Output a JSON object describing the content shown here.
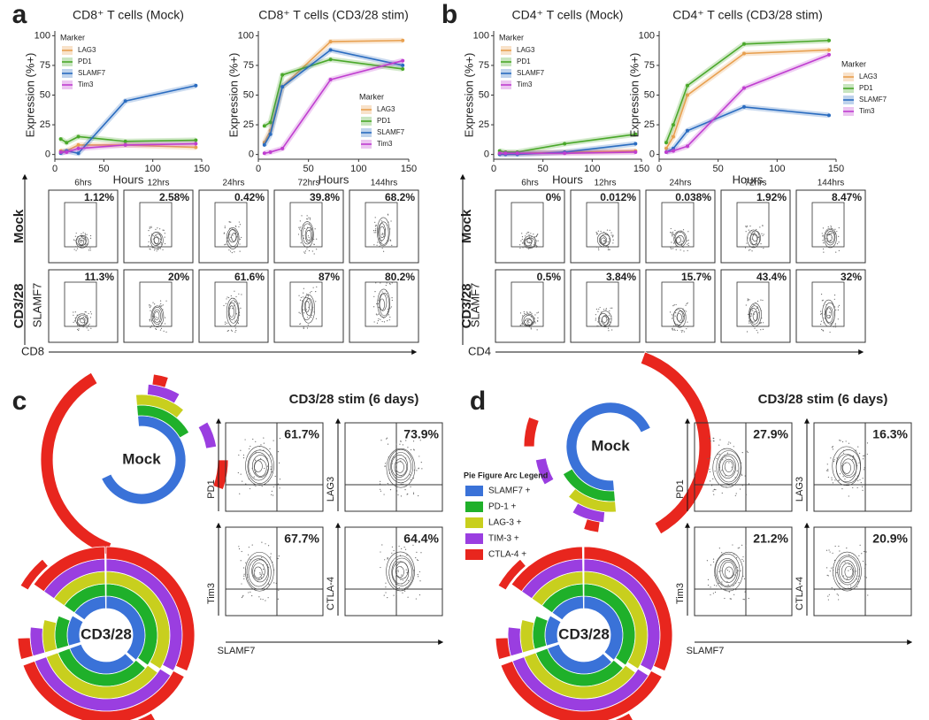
{
  "panel_labels": [
    "a",
    "b",
    "c",
    "d"
  ],
  "chart_data": [
    {
      "type": "line",
      "title": "CD8⁺ T cells (Mock)",
      "x_label": "Hours",
      "y_label": "Expression (%+)",
      "legend_title": "Marker",
      "legend_position": "upper left",
      "x": [
        6,
        12,
        24,
        72,
        144
      ],
      "xlim": [
        0,
        150
      ],
      "xticks": [
        0,
        50,
        100,
        150
      ],
      "ylim": [
        -4,
        104
      ],
      "yticks": [
        0,
        25,
        50,
        75,
        100
      ],
      "series": [
        {
          "name": "LAG3",
          "color": "#e8a050",
          "values": [
            3,
            3,
            8,
            8,
            6
          ]
        },
        {
          "name": "PD1",
          "color": "#4aa82a",
          "values": [
            13,
            10,
            15,
            11,
            12
          ]
        },
        {
          "name": "SLAMF7",
          "color": "#2a6cc0",
          "values": [
            1,
            3,
            1,
            45,
            58
          ]
        },
        {
          "name": "Tim3",
          "color": "#c03ed0",
          "values": [
            2,
            2,
            5,
            8,
            9
          ]
        }
      ]
    },
    {
      "type": "line",
      "title": "CD8⁺ T cells (CD3/28 stim)",
      "x_label": "Hours",
      "y_label": "Expression (%+)",
      "legend_title": "Marker",
      "legend_position": "lower right",
      "x": [
        6,
        12,
        24,
        72,
        144
      ],
      "xlim": [
        0,
        150
      ],
      "xticks": [
        0,
        50,
        100,
        150
      ],
      "ylim": [
        -4,
        104
      ],
      "yticks": [
        0,
        25,
        50,
        75,
        100
      ],
      "series": [
        {
          "name": "LAG3",
          "color": "#e8a050",
          "values": [
            10,
            20,
            57,
            95,
            96
          ]
        },
        {
          "name": "PD1",
          "color": "#4aa82a",
          "values": [
            24,
            27,
            67,
            80,
            72
          ]
        },
        {
          "name": "SLAMF7",
          "color": "#2a6cc0",
          "values": [
            8,
            17,
            57,
            88,
            75
          ]
        },
        {
          "name": "Tim3",
          "color": "#c03ed0",
          "values": [
            1,
            2,
            5,
            63,
            79
          ]
        }
      ]
    },
    {
      "type": "line",
      "title": "CD4⁺ T cells (Mock)",
      "x_label": "Hours",
      "y_label": "Expression (%+)",
      "legend_title": "Marker",
      "legend_position": "upper left",
      "x": [
        6,
        12,
        24,
        72,
        144
      ],
      "xlim": [
        0,
        150
      ],
      "xticks": [
        0,
        50,
        100,
        150
      ],
      "ylim": [
        -4,
        104
      ],
      "yticks": [
        0,
        25,
        50,
        75,
        100
      ],
      "series": [
        {
          "name": "LAG3",
          "color": "#e8a050",
          "values": [
            1,
            1,
            1,
            2,
            3
          ]
        },
        {
          "name": "PD1",
          "color": "#4aa82a",
          "values": [
            3,
            2,
            2,
            9,
            17
          ]
        },
        {
          "name": "SLAMF7",
          "color": "#2a6cc0",
          "values": [
            0,
            0,
            0,
            2,
            9
          ]
        },
        {
          "name": "Tim3",
          "color": "#c03ed0",
          "values": [
            1,
            1,
            1,
            1,
            2
          ]
        }
      ]
    },
    {
      "type": "line",
      "title": "CD4⁺ T cells (CD3/28 stim)",
      "x_label": "Hours",
      "y_label": "Expression (%+)",
      "legend_title": "Marker",
      "legend_position": "right",
      "x": [
        6,
        12,
        24,
        72,
        144
      ],
      "xlim": [
        0,
        150
      ],
      "xticks": [
        0,
        50,
        100,
        150
      ],
      "ylim": [
        -4,
        104
      ],
      "yticks": [
        0,
        25,
        50,
        75,
        100
      ],
      "series": [
        {
          "name": "LAG3",
          "color": "#e8a050",
          "values": [
            5,
            15,
            50,
            85,
            88
          ]
        },
        {
          "name": "PD1",
          "color": "#4aa82a",
          "values": [
            10,
            25,
            58,
            93,
            96
          ]
        },
        {
          "name": "SLAMF7",
          "color": "#2a6cc0",
          "values": [
            2,
            5,
            20,
            40,
            33
          ]
        },
        {
          "name": "Tim3",
          "color": "#c03ed0",
          "values": [
            2,
            3,
            7,
            56,
            84
          ]
        }
      ]
    }
  ],
  "flow_grids": [
    {
      "times": [
        "6hrs",
        "12hrs",
        "24hrs",
        "72hrs",
        "144hrs"
      ],
      "y_label": "SLAMF7",
      "x_label": "CD8",
      "rows": [
        {
          "label": "Mock",
          "values": [
            "1.12%",
            "2.58%",
            "0.42%",
            "39.8%",
            "68.2%"
          ]
        },
        {
          "label": "CD3/28",
          "values": [
            "11.3%",
            "20%",
            "61.6%",
            "87%",
            "80.2%"
          ]
        }
      ]
    },
    {
      "times": [
        "6hrs",
        "12hrs",
        "24hrs",
        "72hrs",
        "144hrs"
      ],
      "y_label": "SLAMF7",
      "x_label": "CD4",
      "rows": [
        {
          "label": "Mock",
          "values": [
            "0%",
            "0.012%",
            "0.038%",
            "1.92%",
            "8.47%"
          ]
        },
        {
          "label": "CD3/28",
          "values": [
            "0.5%",
            "3.84%",
            "15.7%",
            "43.4%",
            "32%"
          ]
        }
      ]
    }
  ],
  "stim_panels": [
    {
      "title": "CD3/28 stim (6 days)",
      "sunburst_labels": [
        "Mock",
        "CD3/28"
      ],
      "x_label": "SLAMF7",
      "plots": [
        {
          "y_label": "PD1",
          "value": "61.7%"
        },
        {
          "y_label": "LAG3",
          "value": "73.9%"
        },
        {
          "y_label": "Tim3",
          "value": "67.7%"
        },
        {
          "y_label": "CTLA-4",
          "value": "64.4%"
        }
      ]
    },
    {
      "title": "CD3/28 stim (6 days)",
      "sunburst_labels": [
        "Mock",
        "CD3/28"
      ],
      "x_label": "SLAMF7",
      "plots": [
        {
          "y_label": "PD1",
          "value": "27.9%"
        },
        {
          "y_label": "LAG3",
          "value": "16.3%"
        },
        {
          "y_label": "Tim3",
          "value": "21.2%"
        },
        {
          "y_label": "CTLA-4",
          "value": "20.9%"
        }
      ]
    }
  ],
  "arc_legend": {
    "title": "Pie Figure Arc Legend",
    "items": [
      {
        "label": "SLAMF7 +",
        "color": "#3a72d8"
      },
      {
        "label": "PD-1 +",
        "color": "#1fb02a"
      },
      {
        "label": "LAG-3 +",
        "color": "#c8cf1e"
      },
      {
        "label": "TIM-3 +",
        "color": "#9a3ee0"
      },
      {
        "label": "CTLA-4 +",
        "color": "#e8261e"
      }
    ]
  }
}
